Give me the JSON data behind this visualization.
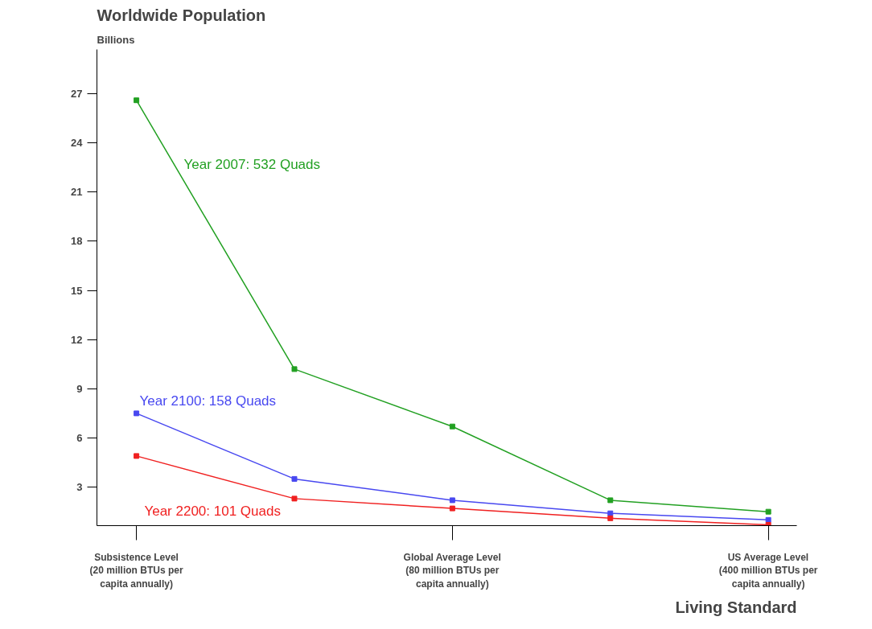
{
  "chart_data": {
    "type": "line",
    "title": "Worldwide Population",
    "ylabel": "Billions",
    "xlabel": "Living Standard",
    "categories": [
      "Subsistence Level\n(20 million BTUs per\ncapita annually)",
      null,
      "Global Average Level\n(80 million BTUs per\ncapita annually)",
      null,
      "US Average Level\n(400 million BTUs per\ncapita annually)"
    ],
    "series": [
      {
        "name": "Year 2007: 532 Quads",
        "color": "#22a022",
        "values": [
          26.6,
          10.2,
          6.7,
          2.2,
          1.5
        ]
      },
      {
        "name": "Year 2100: 158 Quads",
        "color": "#4848f0",
        "values": [
          7.5,
          3.5,
          2.2,
          1.4,
          1.0
        ]
      },
      {
        "name": "Year 2200: 101 Quads",
        "color": "#f02020",
        "values": [
          4.9,
          2.3,
          1.7,
          1.1,
          0.7
        ]
      }
    ],
    "ylim": [
      0.65,
      29.7
    ],
    "yticks": [
      3,
      6,
      9,
      12,
      15,
      18,
      21,
      24,
      27
    ],
    "grid": false,
    "marker": "square"
  }
}
